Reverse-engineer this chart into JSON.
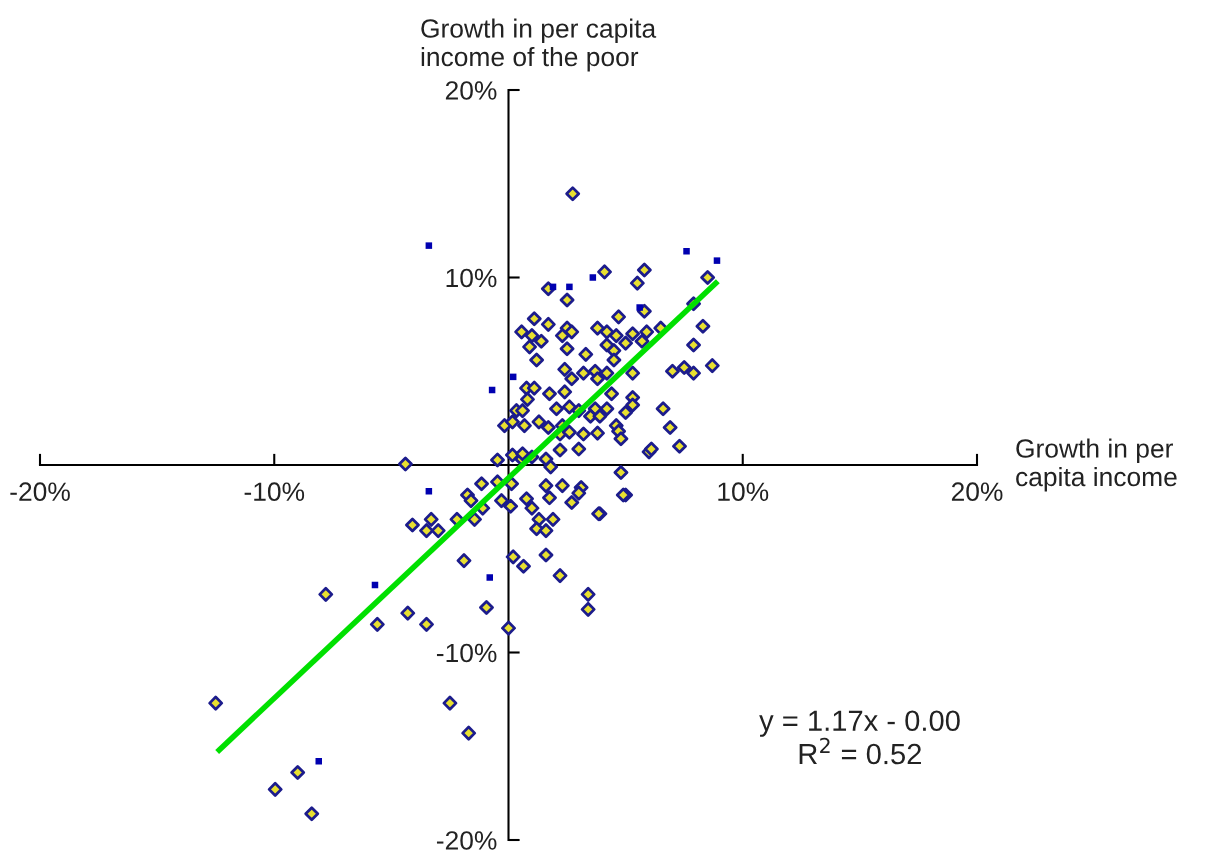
{
  "chart_data": {
    "type": "scatter",
    "xlabel": "Growth in per\ncapita income",
    "ylabel": "Growth in per capita\nincome of the poor",
    "xlim": [
      -20,
      20
    ],
    "ylim": [
      -20,
      20
    ],
    "xticks": [
      {
        "value": -20,
        "label": "-20%"
      },
      {
        "value": -10,
        "label": "-10%"
      },
      {
        "value": 10,
        "label": "10%"
      },
      {
        "value": 20,
        "label": "20%"
      }
    ],
    "yticks": [
      {
        "value": -20,
        "label": "-20%"
      },
      {
        "value": -10,
        "label": "-10%"
      },
      {
        "value": 10,
        "label": "10%"
      },
      {
        "value": 20,
        "label": "20%"
      }
    ],
    "grid": false,
    "legend": false,
    "annotations": [
      "y = 1.17x - 0.00\nR$^{2}$ = 0.52"
    ],
    "series": [
      {
        "color": "#1c1c8c",
        "marker": "diamond",
        "x": [
          2.74,
          -12.5,
          -9.96,
          -9.0,
          -8.4,
          -7.8,
          -5.6,
          -4.3,
          -3.5,
          -4.4,
          -2.5,
          -1.7,
          -1.9,
          -0.94,
          0,
          0.2,
          0.64,
          1.6,
          3.4,
          3.4,
          3.9,
          5.0,
          4.8,
          6.0,
          7.3,
          6.9,
          6.6,
          8.7,
          7.5,
          7.9,
          7.0,
          7.9,
          8.3,
          8.5,
          7.9,
          5.8,
          5.5,
          4.1,
          2.5,
          1.7,
          4.7,
          5.8,
          1.1,
          1.7,
          0.56,
          1.0,
          1.4,
          0.9,
          2.5,
          2.7,
          2.3,
          2.5,
          3.8,
          4.2,
          4.6,
          5.3,
          5.9,
          6.5,
          5.0,
          5.7,
          4.2,
          4.5,
          3.3,
          1.2,
          4.5,
          2.4,
          2.7,
          3.2,
          3.7,
          3.8,
          4.2,
          5.3,
          0.77,
          1.1,
          1.75,
          2.4,
          4.4,
          0.81,
          5.3,
          5.3,
          5.0,
          0.34,
          0.6,
          2.05,
          2.6,
          3.0,
          3.7,
          4.2,
          -0.17,
          0.17,
          0.68,
          1.3,
          1.7,
          2.3,
          3.5,
          3.9,
          4.6,
          4.7,
          4.8,
          2.2,
          2.6,
          3.2,
          3.8,
          3.0,
          0.17,
          0.56,
          1.0,
          1.6,
          2.2,
          1.8,
          -0.47,
          6.1,
          0.6,
          -1.15,
          -0.47,
          0.13,
          -1.75,
          -1.6,
          -1.1,
          -0.3,
          0.09,
          0.77,
          1.0,
          1.6,
          2.3,
          1.75,
          2.7,
          3.1,
          3.0,
          3.85,
          4.9,
          1.3,
          1.9,
          1.2,
          1.6,
          -2.2,
          -1.45,
          -3.3,
          -4.1,
          -3.5,
          -3.0,
          2.2
        ],
        "values": [
          14.47,
          -12.7,
          -17.3,
          -16.4,
          -18.6,
          -6.9,
          -8.5,
          -7.9,
          -8.5,
          0.05,
          -12.7,
          -14.3,
          -5.1,
          -7.6,
          -8.7,
          -4.9,
          -5.4,
          -4.8,
          -6.9,
          -7.7,
          -2.6,
          -1.6,
          -0.4,
          0.7,
          1.0,
          2.0,
          3.0,
          5.3,
          5.2,
          4.9,
          5.0,
          6.4,
          7.4,
          10.0,
          8.6,
          10.4,
          9.7,
          10.3,
          8.8,
          9.4,
          7.9,
          8.2,
          7.8,
          7.5,
          7.1,
          6.9,
          6.6,
          6.3,
          7.3,
          7.1,
          6.9,
          6.2,
          7.3,
          7.1,
          6.9,
          7.0,
          7.1,
          7.3,
          6.5,
          6.6,
          6.4,
          6.1,
          5.9,
          5.6,
          5.6,
          5.1,
          4.6,
          4.9,
          5.0,
          4.6,
          4.9,
          4.9,
          4.1,
          4.1,
          3.8,
          3.9,
          3.8,
          3.5,
          3.6,
          3.2,
          2.8,
          2.9,
          2.9,
          3.0,
          3.1,
          2.9,
          3.0,
          3.0,
          2.1,
          2.3,
          2.1,
          2.3,
          2.0,
          2.1,
          2.6,
          2.6,
          2.1,
          1.8,
          1.4,
          1.65,
          1.75,
          1.65,
          1.7,
          0.85,
          0.53,
          0.32,
          0.43,
          0.32,
          0.8,
          -0.1,
          0.27,
          0.85,
          0.6,
          -1.0,
          -0.9,
          -1.0,
          -1.6,
          -1.9,
          -2.3,
          -1.9,
          -2.2,
          -1.8,
          -2.3,
          -1.1,
          -1.1,
          -1.75,
          -2.0,
          -1.2,
          -1.5,
          -2.6,
          -1.6,
          -2.9,
          -2.9,
          -3.4,
          -3.5,
          -2.9,
          -2.9,
          -2.9,
          -3.2,
          -3.5,
          -3.5,
          -5.9
        ]
      },
      {
        "color": "#0000b0",
        "marker": "square",
        "x": [
          -3.4,
          1.9,
          2.6,
          3.6,
          7.6,
          8.9,
          -0.7,
          0.2,
          -3.4,
          -0.8,
          -5.7,
          -8.1,
          5.6
        ],
        "values": [
          11.7,
          9.5,
          9.5,
          10.0,
          11.4,
          10.9,
          4.0,
          4.7,
          -1.4,
          -6.0,
          -6.4,
          -15.8,
          8.4
        ]
      },
      {
        "type": "line",
        "color": "#00e000",
        "x": [
          -12.35,
          8.85
        ],
        "values": [
          -15.2,
          9.7
        ]
      }
    ]
  }
}
